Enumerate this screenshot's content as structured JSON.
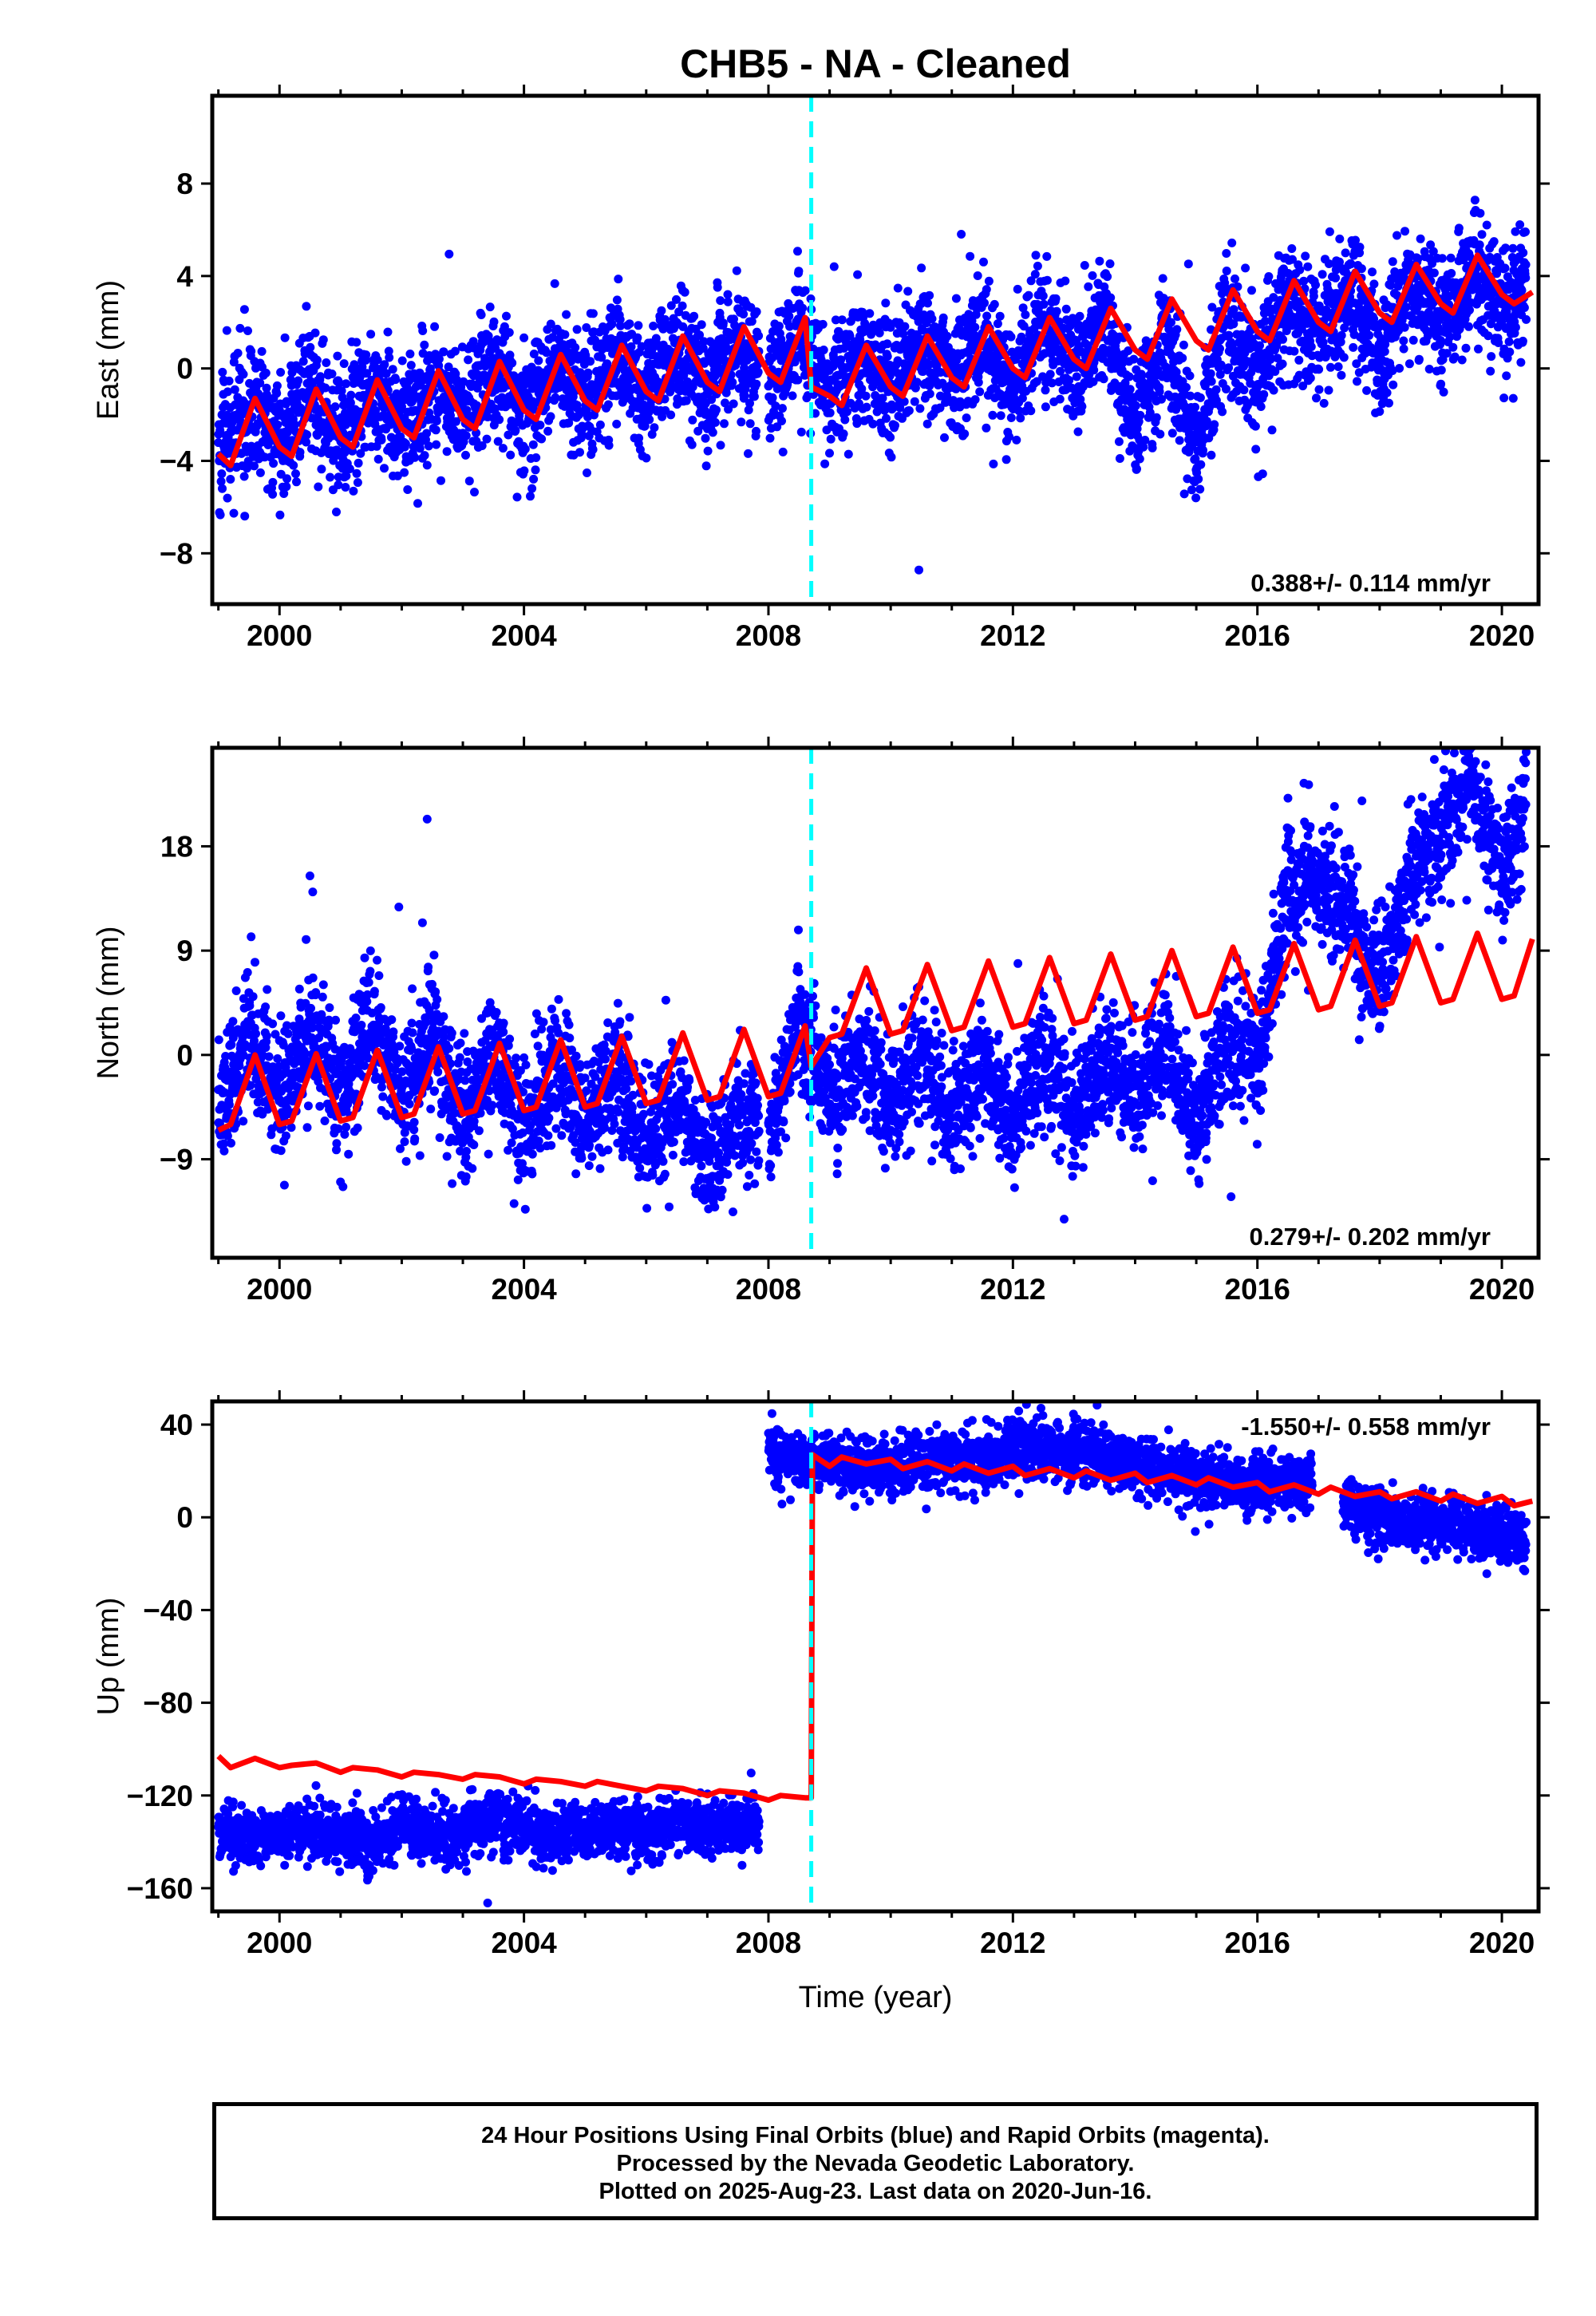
{
  "title": "CHB5  - NA - Cleaned",
  "footer": {
    "line1": "24 Hour Positions Using Final Orbits (blue) and Rapid Orbits (magenta).",
    "line2": "Processed by the Nevada Geodetic Laboratory.",
    "line3": "Plotted on 2025-Aug-23. Last data on 2020-Jun-16."
  },
  "colors": {
    "data": "#0000ff",
    "model": "#ff0000",
    "break": "#00ffff",
    "frame": "#000000"
  },
  "chart_data": [
    {
      "type": "scatter",
      "ylabel": "East (mm)",
      "xlabel": "",
      "xlim": [
        1998.9,
        2020.6
      ],
      "ylim": [
        -10.2,
        11.8
      ],
      "x_ticks": [
        2000,
        2004,
        2008,
        2012,
        2016,
        2020
      ],
      "y_ticks": [
        -8,
        -4,
        0,
        4,
        8
      ],
      "y_tick_labels": [
        "−8",
        "−4",
        "0",
        "4",
        "8"
      ],
      "rate_text": "0.388+/- 0.114 mm/yr",
      "rate_position": "bottom-right",
      "break_epoch": 2008.7,
      "series": [
        {
          "role": "daily positions",
          "x": [
            1999.0,
            1999.5,
            2000.0,
            2000.5,
            2001.0,
            2001.5,
            2002.0,
            2002.5,
            2003.0,
            2003.5,
            2004.0,
            2004.5,
            2005.0,
            2005.5,
            2006.0,
            2006.5,
            2007.0,
            2007.5,
            2008.0,
            2008.5,
            2009.0,
            2009.5,
            2010.0,
            2010.5,
            2011.0,
            2011.5,
            2012.0,
            2012.5,
            2013.0,
            2013.5,
            2014.0,
            2014.5,
            2015.0,
            2015.5,
            2016.0,
            2016.5,
            2017.0,
            2017.5,
            2018.0,
            2018.5,
            2019.0,
            2019.5,
            2020.0,
            2020.4
          ],
          "y": [
            -3.5,
            -1.5,
            -3.0,
            -1.0,
            -2.8,
            -0.8,
            -2.5,
            -0.5,
            -2.0,
            0.0,
            -1.8,
            0.3,
            -1.5,
            0.8,
            -1.0,
            1.0,
            -1.0,
            1.3,
            -0.8,
            1.5,
            -1.0,
            0.8,
            -0.8,
            1.0,
            -0.5,
            1.2,
            -0.5,
            1.8,
            0.0,
            2.0,
            -2.5,
            1.5,
            -3.5,
            2.5,
            -0.5,
            3.0,
            1.5,
            3.5,
            0.5,
            3.8,
            2.0,
            4.0,
            3.0,
            3.5
          ]
        },
        {
          "role": "model fit",
          "x": [
            1999.0,
            1999.2,
            1999.6,
            2000.0,
            2000.2,
            2000.6,
            2001.0,
            2001.2,
            2001.6,
            2002.0,
            2002.2,
            2002.6,
            2003.0,
            2003.2,
            2003.6,
            2004.0,
            2004.2,
            2004.6,
            2005.0,
            2005.2,
            2005.6,
            2006.0,
            2006.2,
            2006.6,
            2007.0,
            2007.2,
            2007.6,
            2008.0,
            2008.2,
            2008.6,
            2008.7,
            2009.0,
            2009.2,
            2009.6,
            2010.0,
            2010.2,
            2010.6,
            2011.0,
            2011.2,
            2011.6,
            2012.0,
            2012.2,
            2012.6,
            2013.0,
            2013.2,
            2013.6,
            2014.0,
            2014.2,
            2014.6,
            2015.0,
            2015.2,
            2015.6,
            2016.0,
            2016.2,
            2016.6,
            2017.0,
            2017.2,
            2017.6,
            2018.0,
            2018.2,
            2018.6,
            2019.0,
            2019.2,
            2019.6,
            2020.0,
            2020.2,
            2020.5
          ],
          "y": [
            -3.7,
            -4.2,
            -1.3,
            -3.4,
            -3.8,
            -0.9,
            -3.0,
            -3.4,
            -0.5,
            -2.6,
            -3.0,
            -0.1,
            -2.2,
            -2.6,
            0.3,
            -1.8,
            -2.2,
            0.6,
            -1.4,
            -1.8,
            1.0,
            -1.0,
            -1.4,
            1.4,
            -0.6,
            -1.0,
            1.8,
            -0.2,
            -0.6,
            2.2,
            -0.8,
            -1.2,
            -1.6,
            1.0,
            -0.8,
            -1.2,
            1.4,
            -0.4,
            -0.8,
            1.8,
            0.0,
            -0.4,
            2.2,
            0.4,
            0.0,
            2.6,
            0.8,
            0.4,
            3.0,
            1.2,
            0.8,
            3.4,
            1.6,
            1.2,
            3.8,
            2.0,
            1.6,
            4.2,
            2.4,
            2.0,
            4.5,
            2.8,
            2.4,
            4.9,
            3.2,
            2.8,
            3.3
          ]
        }
      ]
    },
    {
      "type": "scatter",
      "ylabel": "North (mm)",
      "xlabel": "",
      "xlim": [
        1998.9,
        2020.6
      ],
      "ylim": [
        -17.5,
        26.5
      ],
      "x_ticks": [
        2000,
        2004,
        2008,
        2012,
        2016,
        2020
      ],
      "y_ticks": [
        -9,
        0,
        9,
        18
      ],
      "y_tick_labels": [
        "−9",
        "0",
        "9",
        "18"
      ],
      "rate_text": "0.279+/- 0.202 mm/yr",
      "rate_position": "bottom-right",
      "break_epoch": 2008.7,
      "series": [
        {
          "role": "daily positions",
          "x": [
            1999.0,
            1999.5,
            2000.0,
            2000.5,
            2001.0,
            2001.5,
            2002.0,
            2002.5,
            2003.0,
            2003.5,
            2004.0,
            2004.5,
            2005.0,
            2005.5,
            2006.0,
            2006.5,
            2007.0,
            2007.5,
            2008.0,
            2008.5,
            2009.0,
            2009.5,
            2010.0,
            2010.5,
            2011.0,
            2011.5,
            2012.0,
            2012.5,
            2013.0,
            2013.5,
            2014.0,
            2014.5,
            2015.0,
            2015.5,
            2016.0,
            2016.5,
            2017.0,
            2017.5,
            2018.0,
            2018.5,
            2019.0,
            2019.5,
            2020.0,
            2020.4
          ],
          "y": [
            -5,
            2,
            -4,
            2,
            -3,
            3,
            -4,
            2,
            -5,
            0,
            -7,
            -1,
            -6,
            -2,
            -8,
            -4,
            -10,
            -5,
            -7,
            3,
            -3,
            0,
            -4,
            0,
            -6,
            -1,
            -6,
            -1,
            -5,
            0,
            -4,
            1,
            -6,
            2,
            -1,
            14,
            15,
            12,
            6,
            16,
            18,
            24,
            15,
            22
          ]
        },
        {
          "role": "model fit",
          "x": [
            1999.0,
            1999.2,
            1999.6,
            2000.0,
            2000.2,
            2000.6,
            2001.0,
            2001.2,
            2001.6,
            2002.0,
            2002.2,
            2002.6,
            2003.0,
            2003.2,
            2003.6,
            2004.0,
            2004.2,
            2004.6,
            2005.0,
            2005.2,
            2005.6,
            2006.0,
            2006.2,
            2006.6,
            2007.0,
            2007.2,
            2007.6,
            2008.0,
            2008.2,
            2008.6,
            2008.7,
            2009.0,
            2009.2,
            2009.6,
            2010.0,
            2010.2,
            2010.6,
            2011.0,
            2011.2,
            2011.6,
            2012.0,
            2012.2,
            2012.6,
            2013.0,
            2013.2,
            2013.6,
            2014.0,
            2014.2,
            2014.6,
            2015.0,
            2015.2,
            2015.6,
            2016.0,
            2016.2,
            2016.6,
            2017.0,
            2017.2,
            2017.6,
            2018.0,
            2018.2,
            2018.6,
            2019.0,
            2019.2,
            2019.6,
            2020.0,
            2020.2,
            2020.5
          ],
          "y": [
            -6.5,
            -6.0,
            0.0,
            -6.0,
            -5.7,
            0.1,
            -5.7,
            -5.4,
            0.4,
            -5.4,
            -5.1,
            0.7,
            -5.1,
            -4.8,
            1.0,
            -4.8,
            -4.5,
            1.3,
            -4.5,
            -4.2,
            1.6,
            -4.2,
            -3.9,
            1.9,
            -3.9,
            -3.6,
            2.2,
            -3.6,
            -3.3,
            2.5,
            -1.0,
            1.5,
            1.8,
            7.5,
            1.8,
            2.1,
            7.8,
            2.1,
            2.4,
            8.1,
            2.4,
            2.7,
            8.4,
            2.7,
            3.0,
            8.7,
            3.0,
            3.3,
            9.0,
            3.3,
            3.6,
            9.3,
            3.6,
            3.9,
            9.6,
            3.9,
            4.2,
            9.9,
            4.2,
            4.5,
            10.2,
            4.5,
            4.8,
            10.5,
            4.8,
            5.1,
            10.0
          ]
        }
      ]
    },
    {
      "type": "scatter",
      "ylabel": "Up (mm)",
      "xlabel": "Time (year)",
      "xlim": [
        1998.9,
        2020.6
      ],
      "ylim": [
        -170,
        50
      ],
      "x_ticks": [
        2000,
        2004,
        2008,
        2012,
        2016,
        2020
      ],
      "y_ticks": [
        -160,
        -120,
        -80,
        -40,
        0,
        40
      ],
      "y_tick_labels": [
        "−160",
        "−120",
        "−80",
        "−40",
        "0",
        "40"
      ],
      "rate_text": "-1.550+/- 0.558 mm/yr",
      "rate_position": "top-right",
      "break_epoch": 2008.7,
      "series": [
        {
          "role": "daily positions",
          "x": [
            1999.0,
            1999.5,
            2000.0,
            2000.5,
            2001.0,
            2001.5,
            2002.0,
            2002.5,
            2003.0,
            2003.5,
            2004.0,
            2004.5,
            2005.0,
            2005.5,
            2006.0,
            2006.5,
            2007.0,
            2007.5,
            2007.9,
            2008.0,
            2008.5,
            2009.0,
            2009.5,
            2010.0,
            2010.5,
            2011.0,
            2011.5,
            2012.0,
            2012.5,
            2013.0,
            2013.5,
            2014.0,
            2014.5,
            2015.0,
            2015.5,
            2016.0,
            2016.5,
            2017.0,
            2017.5,
            2018.0,
            2018.5,
            2019.0,
            2019.5,
            2020.0,
            2020.4
          ],
          "y": [
            -135,
            -138,
            -136,
            -134,
            -137,
            -140,
            -132,
            -138,
            -136,
            -130,
            -134,
            -137,
            -135,
            -133,
            -136,
            -132,
            -134,
            -133,
            -132,
            28,
            25,
            24,
            22,
            22,
            24,
            26,
            25,
            30,
            28,
            30,
            27,
            22,
            20,
            18,
            15,
            14,
            15,
            13,
            5,
            0,
            -3,
            -2,
            -5,
            -8,
            -12
          ]
        },
        {
          "role": "model fit",
          "x": [
            1999.0,
            1999.2,
            1999.6,
            2000.0,
            2000.2,
            2000.6,
            2001.0,
            2001.2,
            2001.6,
            2002.0,
            2002.2,
            2002.6,
            2003.0,
            2003.2,
            2003.6,
            2004.0,
            2004.2,
            2004.6,
            2005.0,
            2005.2,
            2005.6,
            2006.0,
            2006.2,
            2006.6,
            2007.0,
            2007.2,
            2007.6,
            2008.0,
            2008.2,
            2008.6,
            2008.7,
            2008.72,
            2009.0,
            2009.2,
            2009.6,
            2010.0,
            2010.2,
            2010.6,
            2011.0,
            2011.2,
            2011.6,
            2012.0,
            2012.2,
            2012.6,
            2013.0,
            2013.2,
            2013.6,
            2014.0,
            2014.2,
            2014.6,
            2015.0,
            2015.2,
            2015.6,
            2016.0,
            2016.2,
            2016.6,
            2017.0,
            2017.2,
            2017.6,
            2018.0,
            2018.2,
            2018.6,
            2019.0,
            2019.2,
            2019.6,
            2020.0,
            2020.2,
            2020.5
          ],
          "y": [
            -103,
            -108,
            -104,
            -108,
            -107,
            -106,
            -110,
            -108,
            -109,
            -112,
            -110,
            -111,
            -113,
            -111,
            -112,
            -115,
            -113,
            -114,
            -116,
            -114,
            -116,
            -118,
            -116,
            -117,
            -120,
            -118,
            -119,
            -122,
            -120,
            -121,
            -121,
            27,
            22,
            26,
            23,
            25,
            21,
            24,
            20,
            23,
            19,
            22,
            18,
            21,
            17,
            20,
            16,
            19,
            15,
            18,
            14,
            17,
            13,
            15,
            11,
            14,
            10,
            13,
            9,
            11,
            8,
            11,
            7,
            10,
            6,
            9,
            5,
            7
          ]
        }
      ]
    }
  ]
}
